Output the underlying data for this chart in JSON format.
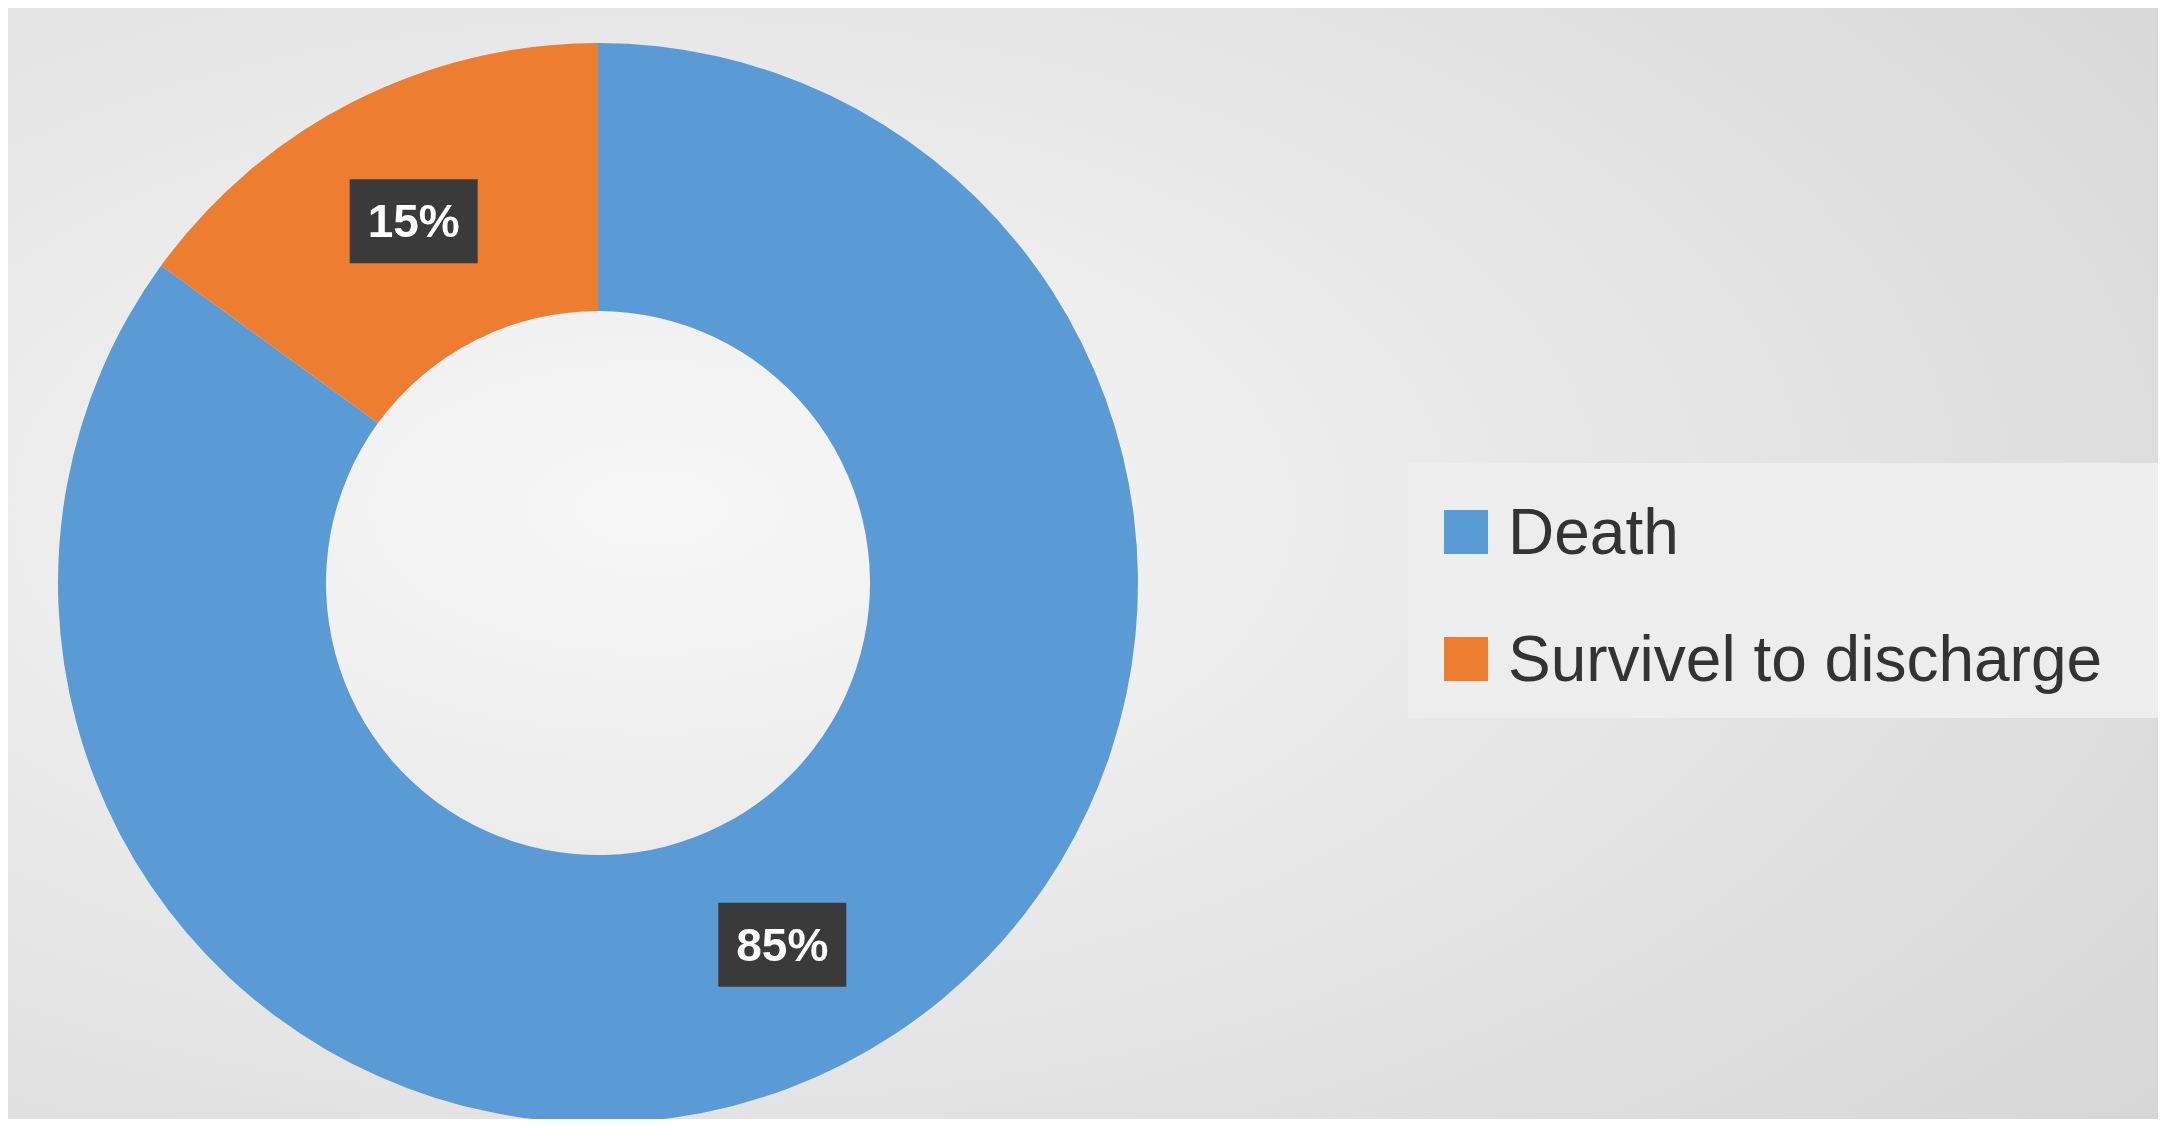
{
  "chart_data": {
    "type": "donut",
    "categories": [
      "Death",
      "Survivel to discharge"
    ],
    "values": [
      85,
      15
    ],
    "colors": [
      "#5b9bd5",
      "#ed7d31"
    ],
    "value_labels": [
      "85%",
      "15%"
    ],
    "legend": "right"
  }
}
